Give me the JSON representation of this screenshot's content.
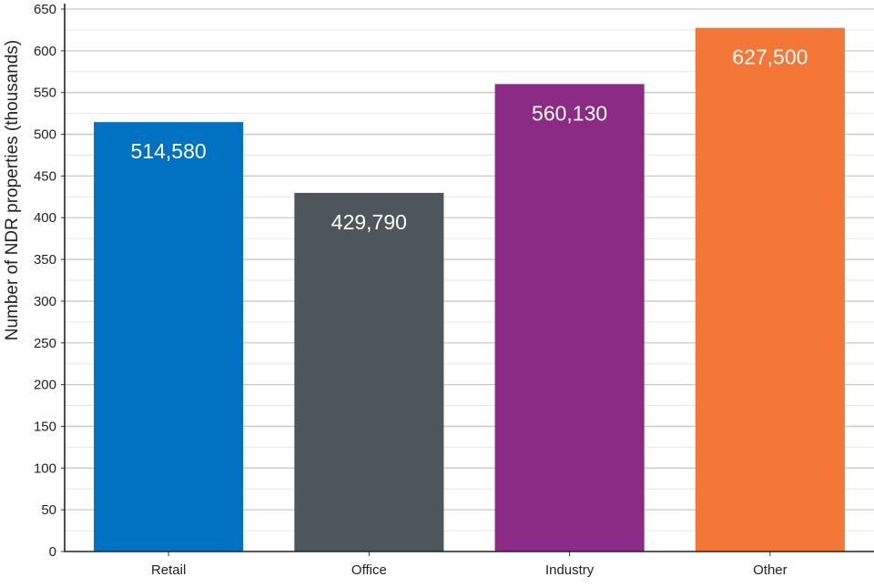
{
  "chart_data": {
    "type": "bar",
    "categories": [
      "Retail",
      "Office",
      "Industry",
      "Other"
    ],
    "values": [
      514.58,
      429.79,
      560.13,
      627.5
    ],
    "data_labels": [
      "514,580",
      "429,790",
      "560,130",
      "627,500"
    ],
    "colors": [
      "#0072c1",
      "#4f565b",
      "#8c2b85",
      "#f47738"
    ],
    "title": "",
    "xlabel": "",
    "ylabel": "Number of NDR properties (thousands)",
    "ylim": [
      0,
      650
    ],
    "yticks": [
      0,
      50,
      100,
      150,
      200,
      250,
      300,
      350,
      400,
      450,
      500,
      550,
      600,
      650
    ],
    "grid": true,
    "legend": "none"
  }
}
